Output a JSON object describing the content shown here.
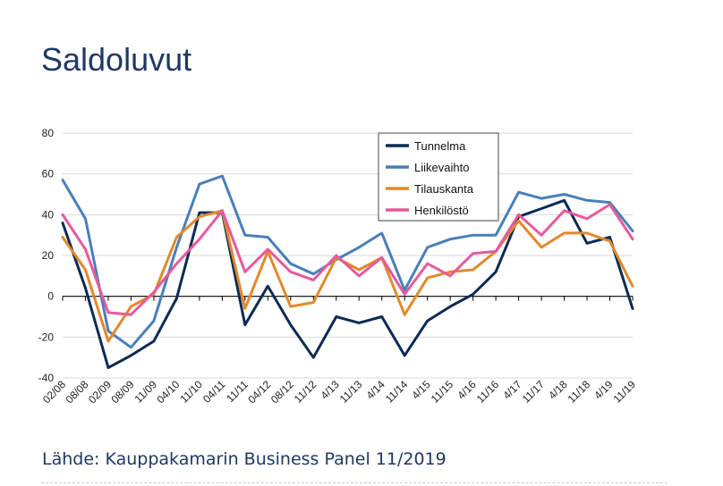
{
  "slide": {
    "title": "Saldoluvut",
    "source": "Lähde: Kauppakamarin Business Panel 11/2019"
  },
  "chart_data": {
    "type": "line",
    "title": "Saldoluvut",
    "xlabel": "",
    "ylabel": "",
    "ylim": [
      -40,
      80
    ],
    "yticks": [
      -40,
      -20,
      0,
      20,
      40,
      60,
      80
    ],
    "grid": "horizontal",
    "legend_position": "top-center",
    "categories": [
      "02/08",
      "08/08",
      "02/09",
      "08/09",
      "11/09",
      "04/10",
      "11/10",
      "04/11",
      "11/11",
      "04/12",
      "08/12",
      "11/12",
      "4/13",
      "11/13",
      "4/14",
      "11/14",
      "4/15",
      "11/15",
      "4/16",
      "11/16",
      "4/17",
      "11/17",
      "4/18",
      "11/18",
      "4/19",
      "11/19"
    ],
    "series": [
      {
        "name": "Tunnelma",
        "color": "#0d2a55",
        "values": [
          36,
          4,
          -35,
          -29,
          -22,
          -1,
          41,
          41,
          -14,
          5,
          -14,
          -30,
          -10,
          -13,
          -10,
          -29,
          -12,
          -5,
          1,
          12,
          39,
          43,
          47,
          26,
          29,
          -6
        ]
      },
      {
        "name": "Liikevaihto",
        "color": "#4a7ebb",
        "values": [
          57,
          38,
          -17,
          -25,
          -12,
          24,
          55,
          59,
          30,
          29,
          16,
          11,
          18,
          24,
          31,
          3,
          24,
          28,
          30,
          30,
          51,
          48,
          50,
          47,
          46,
          32
        ]
      },
      {
        "name": "Tilauskanta",
        "color": "#e2892b",
        "values": [
          29,
          13,
          -22,
          -5,
          1,
          29,
          39,
          42,
          -6,
          22,
          -5,
          -3,
          19,
          13,
          19,
          -9,
          9,
          12,
          13,
          22,
          37,
          24,
          31,
          31,
          27,
          5
        ]
      },
      {
        "name": "Henkilöstö",
        "color": "#e55a9c",
        "values": [
          40,
          23,
          -8,
          -9,
          2,
          16,
          28,
          42,
          12,
          23,
          12,
          8,
          20,
          10,
          19,
          1,
          16,
          10,
          21,
          22,
          40,
          30,
          42,
          38,
          45,
          28
        ]
      }
    ]
  }
}
